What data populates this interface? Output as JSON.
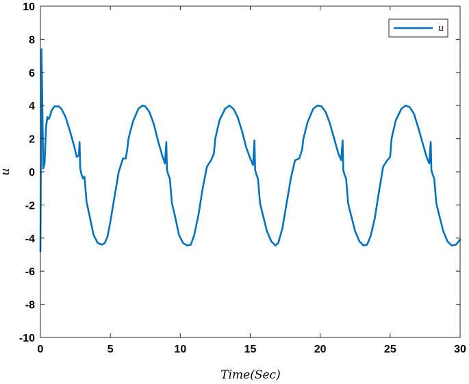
{
  "chart_data": {
    "type": "line",
    "xlabel": "Time(Sec)",
    "ylabel": "u",
    "xlim": [
      0,
      30
    ],
    "ylim": [
      -10,
      10
    ],
    "xticks": [
      0,
      5,
      10,
      15,
      20,
      25,
      30
    ],
    "yticks": [
      -10,
      -8,
      -6,
      -4,
      -2,
      0,
      2,
      4,
      6,
      8,
      10
    ],
    "grid": false,
    "legend_position": "top-right",
    "series": [
      {
        "name": "u",
        "color": "#0072BD",
        "x": [
          0,
          0.08,
          0.12,
          0.2,
          0.3,
          0.4,
          0.5,
          0.6,
          0.7,
          0.8,
          1.0,
          1.3,
          1.5,
          1.8,
          2.1,
          2.4,
          2.6,
          2.75,
          2.8,
          2.85,
          2.95,
          3.05,
          3.15,
          3.3,
          3.5,
          3.8,
          4.1,
          4.4,
          4.6,
          4.8,
          5.0,
          5.3,
          5.6,
          5.9,
          6.1,
          6.2,
          6.3,
          6.6,
          7.0,
          7.3,
          7.5,
          7.8,
          8.1,
          8.4,
          8.7,
          8.9,
          9.0,
          9.05,
          9.15,
          9.25,
          9.4,
          9.6,
          9.9,
          10.2,
          10.5,
          10.75,
          11.0,
          11.3,
          11.6,
          11.9,
          12.2,
          12.4,
          12.5,
          12.8,
          13.2,
          13.5,
          13.8,
          14.1,
          14.4,
          14.7,
          15.0,
          15.2,
          15.3,
          15.35,
          15.45,
          15.55,
          15.7,
          15.9,
          16.2,
          16.5,
          16.8,
          17.0,
          17.3,
          17.6,
          17.9,
          18.2,
          18.5,
          18.7,
          18.8,
          19.1,
          19.5,
          19.8,
          20.1,
          20.4,
          20.7,
          21.0,
          21.3,
          21.5,
          21.6,
          21.65,
          21.75,
          21.85,
          22.0,
          22.2,
          22.5,
          22.8,
          23.1,
          23.35,
          23.6,
          23.9,
          24.2,
          24.5,
          24.8,
          25.0,
          25.1,
          25.4,
          25.8,
          26.1,
          26.4,
          26.7,
          27.0,
          27.3,
          27.6,
          27.8,
          27.9,
          27.95,
          28.05,
          28.15,
          28.3,
          28.5,
          28.8,
          29.1,
          29.4,
          29.7,
          30.0
        ],
        "y": [
          -4.8,
          7.4,
          5.0,
          0.2,
          0.5,
          2.7,
          3.3,
          3.2,
          3.4,
          3.7,
          3.95,
          3.95,
          3.8,
          3.3,
          2.5,
          1.6,
          0.9,
          1.0,
          1.8,
          0.2,
          -0.2,
          -0.4,
          -0.3,
          -1.8,
          -2.6,
          -3.8,
          -4.3,
          -4.4,
          -4.3,
          -3.9,
          -3.0,
          -1.5,
          0.0,
          0.8,
          0.8,
          1.3,
          2.0,
          3.0,
          3.8,
          4.0,
          3.95,
          3.6,
          2.9,
          1.9,
          1.0,
          0.5,
          1.8,
          0.1,
          -0.2,
          -0.4,
          -1.9,
          -2.6,
          -3.8,
          -4.3,
          -4.45,
          -4.4,
          -3.8,
          -2.6,
          -1.0,
          0.3,
          0.7,
          1.1,
          2.0,
          3.1,
          3.8,
          4.0,
          3.8,
          3.3,
          2.5,
          1.5,
          0.8,
          0.4,
          1.9,
          0.1,
          -0.2,
          -0.4,
          -1.9,
          -2.6,
          -3.6,
          -4.2,
          -4.45,
          -4.3,
          -3.4,
          -1.9,
          -0.4,
          0.7,
          0.8,
          1.3,
          2.0,
          3.0,
          3.8,
          4.0,
          3.95,
          3.6,
          2.9,
          2.0,
          1.1,
          0.7,
          1.9,
          0.1,
          -0.2,
          -0.4,
          -1.9,
          -2.6,
          -3.6,
          -4.2,
          -4.45,
          -4.4,
          -3.9,
          -2.8,
          -1.2,
          0.3,
          0.7,
          0.9,
          2.0,
          3.1,
          3.8,
          4.0,
          3.9,
          3.5,
          2.7,
          1.8,
          0.9,
          0.5,
          1.8,
          0.1,
          -0.2,
          -0.4,
          -1.9,
          -2.6,
          -3.6,
          -4.2,
          -4.45,
          -4.4,
          -4.1
        ]
      }
    ]
  }
}
